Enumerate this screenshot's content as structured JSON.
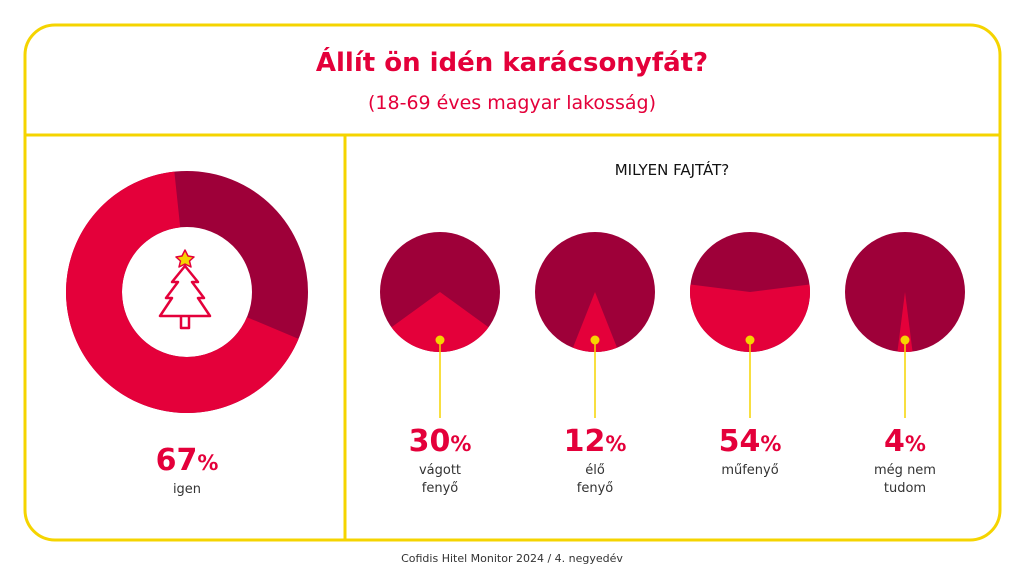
{
  "header": {
    "title": "Állít ön idén karácsonyfát?",
    "subtitle": "(18-69 éves magyar lakosság)"
  },
  "chart_data": [
    {
      "type": "donut",
      "categories": [
        "igen"
      ],
      "values": [
        67
      ],
      "unit": "%",
      "color": "#e4003a",
      "background_color": "#9e0039"
    },
    {
      "type": "pie",
      "title": "MILYEN FAJTÁT?",
      "categories": [
        "vágott\nfenyő",
        "élő\nfenyő",
        "műfenyő",
        "még nem\ntudom"
      ],
      "values": [
        30,
        12,
        54,
        4
      ],
      "unit": "%",
      "color": "#e4003a",
      "background_color": "#9e0039"
    }
  ],
  "footer": "Cofidis Hitel Monitor 2024 / 4. negyedév"
}
